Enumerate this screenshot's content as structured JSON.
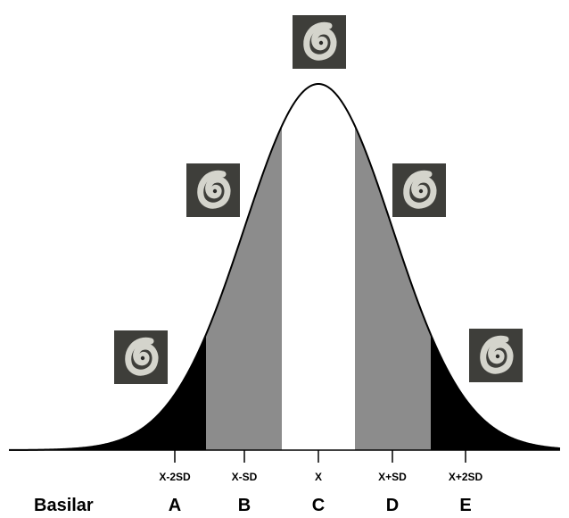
{
  "diagram": {
    "row_label": "Basilar",
    "ticks": [
      "X-2SD",
      "X-SD",
      "X",
      "X+SD",
      "X+2SD"
    ],
    "groups": [
      "A",
      "B",
      "C",
      "D",
      "E"
    ],
    "region_colors": {
      "A": "#000000",
      "B": "#8c8c8c",
      "C": "#ffffff",
      "D": "#8c8c8c",
      "E": "#000000"
    },
    "thumbnails": [
      {
        "icon": "cochlea-spiral-icon"
      },
      {
        "icon": "cochlea-spiral-icon"
      },
      {
        "icon": "cochlea-spiral-icon"
      },
      {
        "icon": "cochlea-spiral-icon"
      },
      {
        "icon": "cochlea-spiral-icon"
      }
    ]
  }
}
